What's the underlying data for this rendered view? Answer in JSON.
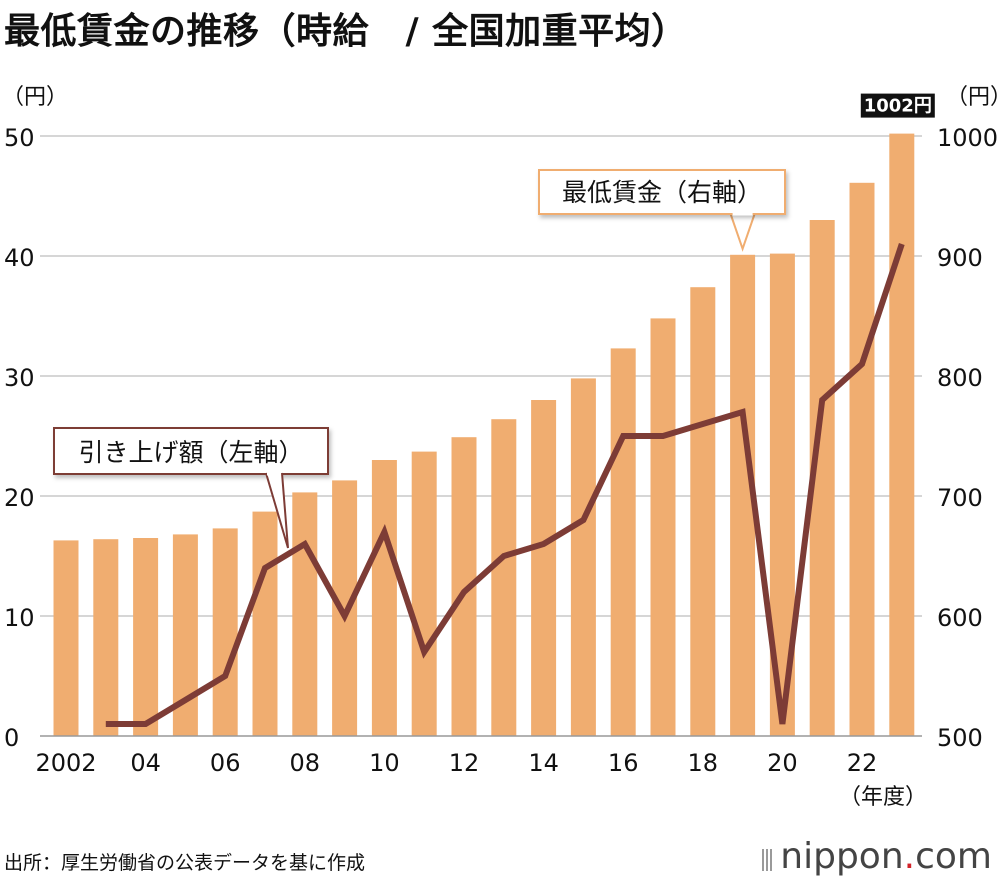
{
  "title": "最低賃金の推移（時給　/ 全国加重平均）",
  "source": "出所：厚生労働省の公表データを基に作成",
  "brand": {
    "name": "nippon",
    "dot": ".",
    "suffix": "com"
  },
  "colors": {
    "bar": "#f0ad70",
    "line": "#7d3c36",
    "grid": "#c8c8c8",
    "callout_border": "#7d3c36",
    "badge_bg": "#111111",
    "badge_text": "#ffffff"
  },
  "chart_data": {
    "type": "bar+line",
    "years": [
      2002,
      2003,
      2004,
      2005,
      2006,
      2007,
      2008,
      2009,
      2010,
      2011,
      2012,
      2013,
      2014,
      2015,
      2016,
      2017,
      2018,
      2019,
      2020,
      2021,
      2022,
      2023
    ],
    "x_tick_labels": [
      {
        "year": 2002,
        "label": "2002"
      },
      {
        "year": 2004,
        "label": "04"
      },
      {
        "year": 2006,
        "label": "06"
      },
      {
        "year": 2008,
        "label": "08"
      },
      {
        "year": 2010,
        "label": "10"
      },
      {
        "year": 2012,
        "label": "12"
      },
      {
        "year": 2014,
        "label": "14"
      },
      {
        "year": 2016,
        "label": "16"
      },
      {
        "year": 2018,
        "label": "18"
      },
      {
        "year": 2020,
        "label": "20"
      },
      {
        "year": 2022,
        "label": "22"
      }
    ],
    "x_unit": "（年度）",
    "series": [
      {
        "name": "最低賃金（右軸）",
        "type": "bar",
        "axis": "right",
        "values": [
          663,
          664,
          665,
          668,
          673,
          687,
          703,
          713,
          730,
          737,
          749,
          764,
          780,
          798,
          823,
          848,
          874,
          901,
          902,
          930,
          961,
          1002
        ]
      },
      {
        "name": "引き上げ額（左軸）",
        "type": "line",
        "axis": "left",
        "values": [
          null,
          1,
          1,
          3,
          5,
          14,
          16,
          10,
          17,
          7,
          12,
          15,
          16,
          18,
          25,
          25,
          26,
          27,
          1,
          28,
          31,
          41
        ]
      }
    ],
    "left_axis": {
      "unit": "（円）",
      "min": 0,
      "max": 50,
      "ticks": [
        "0",
        "10",
        "20",
        "30",
        "40",
        "50"
      ]
    },
    "right_axis": {
      "unit": "（円）",
      "min": 500,
      "max": 1000,
      "ticks": [
        "500",
        "600",
        "700",
        "800",
        "900",
        "1000"
      ]
    },
    "annotations": {
      "bar_callout": "最低賃金（右軸）",
      "line_callout": "引き上げ額（左軸）",
      "last_value_badge": "1002円"
    }
  }
}
